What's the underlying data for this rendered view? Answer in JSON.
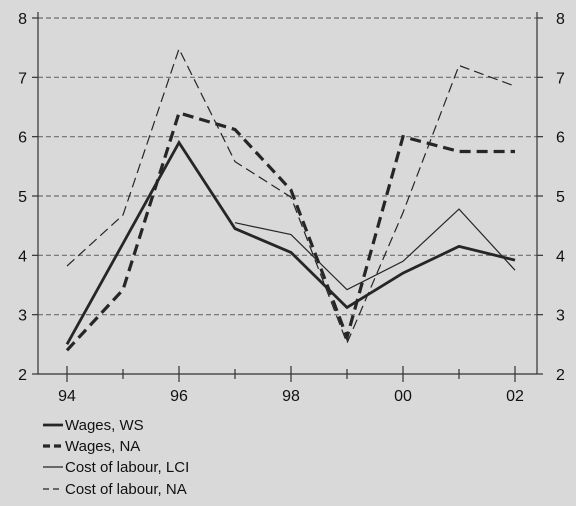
{
  "chart_data": {
    "type": "line",
    "title": "",
    "xlabel": "",
    "ylabel": "",
    "x_ticks": [
      "94",
      "96",
      "98",
      "00",
      "02"
    ],
    "x_range": [
      1994,
      2002
    ],
    "ylim": [
      2,
      8
    ],
    "y_ticks": [
      2,
      3,
      4,
      5,
      6,
      7,
      8
    ],
    "y_axis": "left-and-right",
    "grid": "horizontal-dashed",
    "legend_placement": "bottom-left",
    "series": [
      {
        "name": "Wages, WS",
        "style": "thick-solid",
        "color": "#262626",
        "x": [
          1994,
          1995,
          1996,
          1997,
          1998,
          1999,
          2000,
          2001,
          2002
        ],
        "values": [
          2.5,
          4.2,
          5.9,
          4.45,
          4.05,
          3.12,
          3.7,
          4.15,
          3.92
        ]
      },
      {
        "name": "Wages, NA",
        "style": "thick-dashed",
        "color": "#262626",
        "x": [
          1994,
          1995,
          1996,
          1997,
          1998,
          1999,
          2000,
          2001,
          2002
        ],
        "values": [
          2.4,
          3.42,
          6.4,
          6.12,
          5.1,
          2.62,
          6.0,
          5.75,
          5.75
        ]
      },
      {
        "name": "Cost of labour, LCI",
        "style": "thin-solid",
        "color": "#262626",
        "x": [
          1997,
          1998,
          1999,
          2000,
          2001,
          2002
        ],
        "values": [
          4.55,
          4.35,
          3.42,
          3.9,
          4.78,
          3.75
        ]
      },
      {
        "name": "Cost of labour, NA",
        "style": "thin-dashed",
        "color": "#262626",
        "x": [
          1994,
          1995,
          1996,
          1997,
          1998,
          1999,
          2000,
          2001,
          2002
        ],
        "values": [
          3.82,
          4.68,
          7.48,
          5.58,
          4.98,
          2.52,
          4.72,
          7.2,
          6.85
        ]
      }
    ]
  }
}
